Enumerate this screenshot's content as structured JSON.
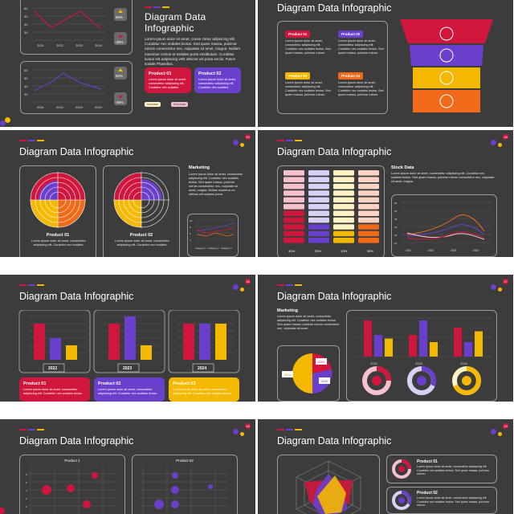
{
  "common": {
    "title": "Diagram Data Infographic",
    "lorem": "Lorem ipsum dolor sit amet, consectetur adipiscing elit. Curabitur nec sodales lectus. Sed quam massa, pulvinar rutrum consectetur nec, vulputate sit amet.",
    "lorem_short": "Lorem ipsum dolor sit amet, consectetur adipiscing elit. Curabitur nec sodales.",
    "colors": {
      "bg": "#3c3c3c",
      "red": "#d0163c",
      "purple": "#6a3fcb",
      "yellow": "#f5b800",
      "orange": "#f06a1a",
      "pink": "#f5c1cc"
    }
  },
  "slide1": {
    "title_line1": "Diagram Data",
    "title_line2": "Infographic",
    "body": "Lorem ipsum dolor sit amet, conse ctetur adipiscing elit. Curabitur nec sodales lectus. Sed quam massa, pulvinar rutrum consectetur nec, vulputate sit amet, magna. Nullam maximus cursus et sodales porta vestibulum. Curabitur luctus est adipiscing velit ultrices vel porta sociis. Fusce sodale Phasellus.",
    "chart_top": {
      "x": [
        "2021",
        "2022",
        "2023",
        "2024"
      ],
      "yticks": [
        "60",
        "50",
        "40",
        "30",
        "20",
        "10"
      ]
    },
    "chart_bot": {
      "x": [
        "2021",
        "2022",
        "2023",
        "2024"
      ],
      "yticks": [
        "60",
        "50",
        "40",
        "30",
        "20",
        "10"
      ]
    },
    "pct_up_1": "60%",
    "pct_down_1": "-40%",
    "pct_up_2": "60%",
    "pct_down_2": "-40%",
    "product01": "Product 01",
    "product02": "Product 02",
    "card_text": "Lorem ipsum dolor sit amet, consectetur adipiscing elit. Curabitur nec sodales.",
    "increase": "Increase",
    "decrease": "Decrease"
  },
  "slide2": {
    "title": "Diagram Data Infographic",
    "items": [
      {
        "label": "Product 01",
        "text": "Lorem ipsum dolor sit amet, consectetur adipiscing elit. Curabitur nec sodales lectus. Sed quam massa, pulvinar rutrum."
      },
      {
        "label": "Product 02",
        "text": "Lorem ipsum dolor sit amet, consectetur adipiscing elit. Curabitur nec sodales lectus. Sed quam massa, pulvinar rutrum."
      },
      {
        "label": "Product 03",
        "text": "Lorem ipsum dolor sit amet, consectetur adipiscing elit. Curabitur nec sodales lectus. Sed quam massa, pulvinar rutrum."
      },
      {
        "label": "Product 04",
        "text": "Lorem ipsum dolor sit amet, consectetur adipiscing elit. Curabitur nec sodales lectus. Sed quam massa, pulvinar rutrum."
      }
    ]
  },
  "slide3": {
    "page": "15",
    "title": "Diagram Data Infographic",
    "marketing": "Marketing",
    "mk_text": "Lorem ipsum dolor sit amet, consectetur adipiscing elit. Curabitur nec sodales lectus. Sed quam massa, pulvinar rutrum consectetur nec, vulputate sit amet, magna. Nullam maximus eu ultrices elit sodales porta.",
    "p1": "Product 01",
    "p2": "Product 02",
    "p_text": "Lorem ipsum dolor sit amet, consectetur adipiscing elit. Curabitur nec sodales.",
    "mini_y": [
      "10",
      "8",
      "6",
      "4",
      "2",
      "0"
    ],
    "mini_x": [
      "Category 1",
      "Category 2",
      "Category 3"
    ]
  },
  "slide4": {
    "page": "16",
    "title": "Diagram Data Infographic",
    "stock": "Stock Data",
    "st_text": "Lorem ipsum dolor sit amet, consectetur adipiscing elit. Curabitur nec sodales lectus. Sed quam massa, pulvinar rutrum consectetur nec, vulputate sit amet, magna.",
    "pcts": [
      "40%",
      "20%",
      "10%",
      "30%"
    ],
    "line_x": [
      "2021",
      "2022",
      "2023",
      "2024"
    ],
    "line_y": [
      "60",
      "50",
      "40",
      "30",
      "20",
      "10",
      "0"
    ]
  },
  "slide5": {
    "page": "16",
    "title": "Diagram Data Infographic",
    "years": [
      "2022",
      "2023",
      "2024"
    ],
    "yticks": [
      "6",
      "5",
      "4",
      "3",
      "2",
      "1",
      "0"
    ],
    "cards": [
      {
        "label": "Product 01",
        "text": "Lorem ipsum dolor sit amet, consectetur adipiscing elit. Curabitur nec sodales lectus."
      },
      {
        "label": "Product 02",
        "text": "Lorem ipsum dolor sit amet, consectetur adipiscing elit. Curabitur nec sodales lectus."
      },
      {
        "label": "Product 03",
        "text": "Lorem ipsum dolor sit amet, consectetur adipiscing elit. Curabitur nec sodales lectus."
      }
    ]
  },
  "slide6": {
    "page": "17",
    "title": "Diagram Data Infographic",
    "marketing": "Marketing",
    "mk_text": "Lorem ipsum dolor sit amet, consectetur adipiscing elit. Curabitur nec sodales lectus. Sed quam massa, pulvinar rutrum consectetur nec, vulputate sit amet.",
    "pie": [
      {
        "label": "20%",
        "v": 20
      },
      {
        "label": "30%",
        "v": 30
      },
      {
        "label": "50%",
        "v": 50
      }
    ],
    "years": [
      "2022",
      "2023",
      "2024"
    ],
    "yticks": [
      "6",
      "4",
      "2",
      "0"
    ]
  },
  "slide7": {
    "page": "18",
    "title": "Diagram Data Infographic",
    "p1": "Product 1",
    "p2": "Product 02",
    "yticks": [
      "6",
      "5",
      "4",
      "3",
      "2",
      "1"
    ]
  },
  "slide8": {
    "page": "19",
    "title": "Diagram Data Infographic",
    "cards": [
      {
        "label": "Product 01",
        "text": "Lorem ipsum dolor sit amet, consectetur adipiscing elit. Curabitur nec sodales lectus. Sed quam massa, pulvinar rutrum."
      },
      {
        "label": "Product 02",
        "text": "Lorem ipsum dolor sit amet, consectetur adipiscing elit. Curabitur nec sodales lectus. Sed quam massa, pulvinar rutrum."
      }
    ]
  }
}
